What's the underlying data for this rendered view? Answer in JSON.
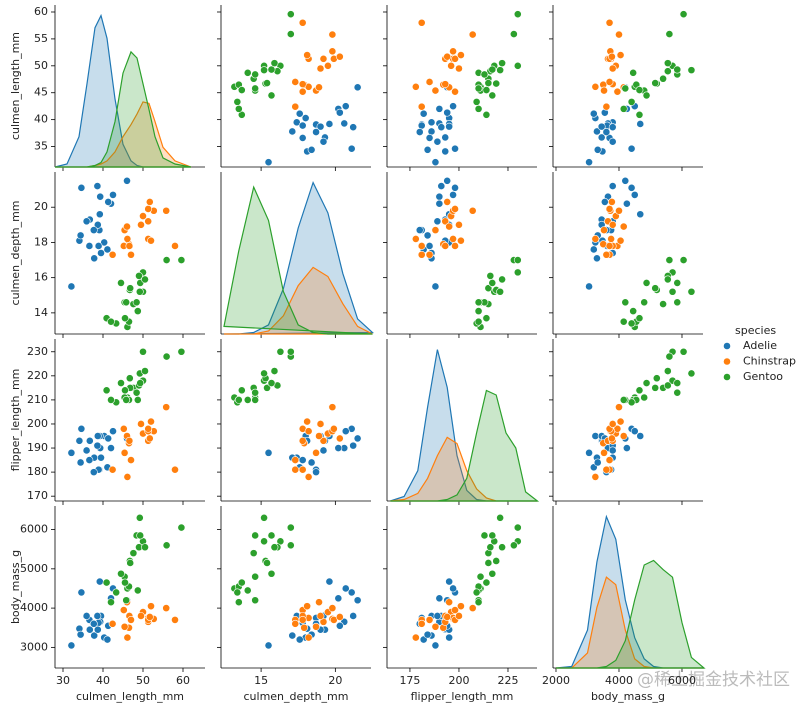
{
  "chart_data": {
    "type": "pairplot",
    "legend_title": "species",
    "watermark": "@稀土掘金技术社区",
    "variables": [
      {
        "name": "culmen_length_mm",
        "xlim": [
          28,
          65.5
        ],
        "xticks": [
          30,
          40,
          50,
          60
        ],
        "ylim": [
          31.2,
          61.3
        ],
        "yticks": [
          35,
          40,
          45,
          50,
          55,
          60
        ],
        "kde_x": [
          28,
          31,
          34,
          36,
          38,
          39.5,
          41,
          43,
          45,
          47,
          48.5,
          50,
          51.5,
          53,
          55,
          58,
          62
        ],
        "kde_ylim": [
          0,
          1.07
        ]
      },
      {
        "name": "culmen_depth_mm",
        "xlim": [
          12.3,
          22.4
        ],
        "xticks": [
          15,
          20
        ],
        "ylim": [
          12.8,
          22
        ],
        "yticks": [
          14,
          16,
          18,
          20
        ],
        "kde_x": [
          12.5,
          13.5,
          14.5,
          15.5,
          16.5,
          17.5,
          18.5,
          19.5,
          20.5,
          21.5,
          22.5
        ],
        "kde_ylim": [
          0,
          1.07
        ]
      },
      {
        "name": "flipper_length_mm",
        "xlim": [
          163.3,
          239.8
        ],
        "xticks": [
          175,
          200,
          225
        ],
        "ylim": [
          168,
          235.3
        ],
        "yticks": [
          170,
          180,
          190,
          200,
          210,
          220,
          230
        ],
        "kde_x": [
          165,
          172,
          179,
          184,
          189,
          194,
          199,
          204,
          209,
          214,
          219,
          224,
          229,
          234,
          240
        ],
        "kde_ylim": [
          0,
          1.07
        ]
      },
      {
        "name": "body_mass_g",
        "xlim": [
          1905,
          6667
        ],
        "xticks": [
          2000,
          4000,
          6000
        ],
        "ylim": [
          2475,
          6600
        ],
        "yticks": [
          3000,
          4000,
          5000,
          6000
        ],
        "kde_x": [
          2000,
          2500,
          3000,
          3300,
          3600,
          3900,
          4200,
          4500,
          4800,
          5100,
          5400,
          5700,
          6000,
          6300,
          6700
        ],
        "kde_ylim": [
          0,
          1.07
        ]
      }
    ],
    "series": [
      {
        "name": "Adelie",
        "color": "#1f77b4",
        "values": [
          [
            39.1,
            39.5,
            40.3,
            36.7,
            39.3,
            38.9,
            39.2,
            34.1,
            42.0,
            37.8,
            41.1,
            38.6,
            34.6,
            36.6,
            38.7,
            42.5,
            34.4,
            46.0,
            37.7,
            35.9,
            32.1,
            41.3
          ],
          [
            18.7,
            17.4,
            18.0,
            19.3,
            20.6,
            17.8,
            19.6,
            18.1,
            20.2,
            17.1,
            17.6,
            21.2,
            21.1,
            17.8,
            19.0,
            20.7,
            18.4,
            21.5,
            18.7,
            19.2,
            15.5,
            20.3
          ],
          [
            181,
            186,
            195,
            193,
            190,
            181,
            195,
            193,
            190,
            186,
            182,
            191,
            198,
            185,
            195,
            197,
            184,
            194,
            180,
            189,
            188,
            194
          ],
          [
            3750,
            3800,
            3250,
            3450,
            3650,
            3625,
            4675,
            3475,
            4250,
            3300,
            3200,
            3800,
            4400,
            3700,
            3450,
            4500,
            3325,
            4200,
            3600,
            3800,
            3050,
            3550
          ]
        ],
        "kde": [
          [
            0,
            0.02,
            0.2,
            0.55,
            0.92,
            1.0,
            0.85,
            0.45,
            0.15,
            0.04,
            0.01,
            0,
            0,
            0,
            0,
            0,
            0
          ],
          [
            0,
            0,
            0.01,
            0.06,
            0.3,
            0.7,
            1.0,
            0.8,
            0.4,
            0.1,
            0.01
          ],
          [
            0,
            0.03,
            0.2,
            0.62,
            1.0,
            0.75,
            0.3,
            0.07,
            0.01,
            0,
            0,
            0,
            0,
            0,
            0
          ],
          [
            0,
            0.01,
            0.25,
            0.7,
            1.0,
            0.85,
            0.45,
            0.2,
            0.06,
            0.01,
            0,
            0,
            0,
            0,
            0
          ]
        ]
      },
      {
        "name": "Chinstrap",
        "color": "#ff7f0e",
        "values": [
          [
            46.5,
            50.0,
            51.3,
            45.4,
            52.7,
            45.2,
            46.1,
            51.3,
            46.0,
            51.3,
            46.6,
            51.7,
            47.0,
            52.0,
            58.0,
            49.5,
            42.4,
            55.8
          ],
          [
            17.9,
            19.5,
            19.2,
            18.7,
            19.8,
            17.8,
            18.2,
            18.2,
            18.9,
            19.9,
            17.8,
            20.3,
            17.3,
            18.1,
            17.8,
            19.0,
            17.3,
            19.8
          ],
          [
            192,
            196,
            193,
            188,
            197,
            198,
            178,
            197,
            195,
            198,
            193,
            194,
            185,
            201,
            181,
            200,
            181,
            207
          ],
          [
            3500,
            3900,
            3650,
            3525,
            3725,
            3950,
            3250,
            3750,
            4150,
            3700,
            3800,
            3775,
            3700,
            4050,
            3700,
            3800,
            3600,
            4000
          ]
        ],
        "kde": [
          [
            0,
            0,
            0,
            0,
            0.01,
            0.02,
            0.04,
            0.1,
            0.2,
            0.28,
            0.35,
            0.43,
            0.42,
            0.3,
            0.13,
            0.04,
            0
          ],
          [
            0,
            0,
            0,
            0.02,
            0.12,
            0.32,
            0.44,
            0.38,
            0.2,
            0.05,
            0
          ],
          [
            0,
            0.01,
            0.05,
            0.15,
            0.3,
            0.42,
            0.38,
            0.2,
            0.08,
            0.02,
            0,
            0,
            0,
            0,
            0
          ],
          [
            0,
            0,
            0.1,
            0.4,
            0.6,
            0.55,
            0.25,
            0.06,
            0.01,
            0,
            0,
            0,
            0,
            0,
            0
          ]
        ]
      },
      {
        "name": "Gentoo",
        "color": "#2ca02c",
        "values": [
          [
            46.1,
            50.0,
            48.7,
            50.0,
            47.6,
            46.5,
            45.4,
            46.7,
            43.3,
            46.8,
            40.9,
            49.0,
            45.5,
            48.4,
            45.8,
            49.3,
            42.0,
            49.2,
            55.9,
            59.6,
            50.5,
            44.5
          ],
          [
            13.2,
            16.3,
            14.1,
            15.2,
            14.5,
            13.5,
            14.6,
            15.3,
            13.4,
            15.4,
            13.7,
            16.1,
            13.7,
            14.6,
            14.6,
            15.7,
            13.5,
            15.2,
            17.0,
            17.0,
            15.9,
            15.7
          ],
          [
            211,
            230,
            210,
            218,
            215,
            210,
            211,
            219,
            209,
            215,
            214,
            216,
            214,
            213,
            210,
            217,
            210,
            221,
            228,
            230,
            222,
            217
          ],
          [
            4500,
            5700,
            4450,
            5700,
            5400,
            4550,
            4800,
            5200,
            4400,
            5150,
            4650,
            5550,
            4650,
            5850,
            4200,
            5850,
            4150,
            6300,
            5600,
            6050,
            5550,
            4875
          ]
        ],
        "kde": [
          [
            0,
            0,
            0,
            0,
            0.01,
            0.03,
            0.1,
            0.3,
            0.62,
            0.76,
            0.72,
            0.55,
            0.38,
            0.2,
            0.06,
            0.02,
            0
          ],
          [
            0.05,
            0.55,
            0.97,
            0.75,
            0.28,
            0.06,
            0.01,
            0,
            0,
            0,
            0
          ],
          [
            0,
            0,
            0,
            0,
            0,
            0.01,
            0.04,
            0.15,
            0.45,
            0.73,
            0.7,
            0.45,
            0.35,
            0.06,
            0
          ],
          [
            0,
            0,
            0,
            0,
            0.01,
            0.05,
            0.18,
            0.45,
            0.68,
            0.71,
            0.65,
            0.6,
            0.3,
            0.07,
            0
          ]
        ]
      }
    ]
  }
}
